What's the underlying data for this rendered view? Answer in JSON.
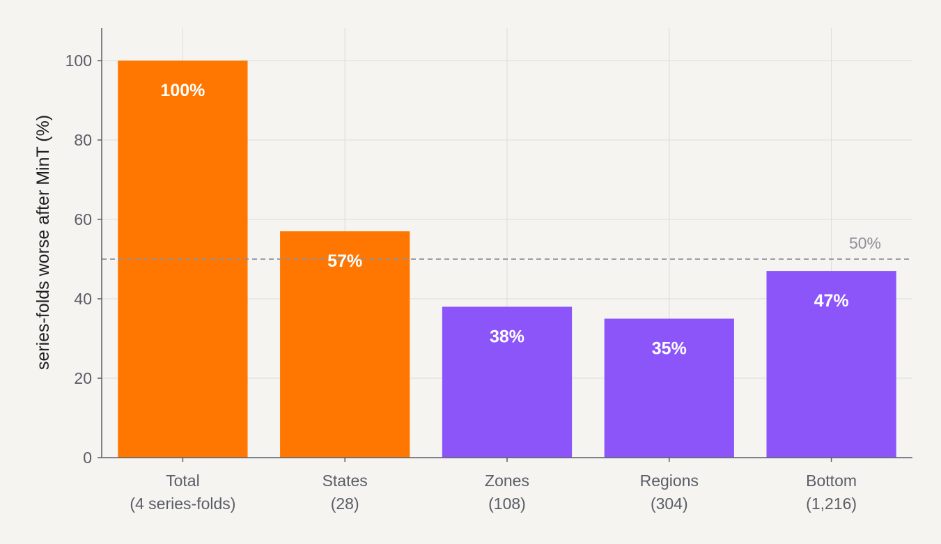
{
  "chart_data": {
    "type": "bar",
    "title": "",
    "xlabel": "",
    "ylabel": "series-folds worse after MinT (%)",
    "ylim": [
      0,
      108
    ],
    "yticks": [
      0,
      20,
      40,
      60,
      80,
      100
    ],
    "grid": true,
    "categories": [
      [
        "Total",
        "(4 series-folds)"
      ],
      [
        "States",
        "(28)"
      ],
      [
        "Zones",
        "(108)"
      ],
      [
        "Regions",
        "(304)"
      ],
      [
        "Bottom",
        "(1,216)"
      ]
    ],
    "values": [
      100,
      57,
      38,
      35,
      47
    ],
    "data_labels": [
      "100%",
      "57%",
      "38%",
      "35%",
      "47%"
    ],
    "bar_colors": [
      "#ff7700",
      "#ff7700",
      "#8b55fa",
      "#8b55fa",
      "#8b55fa"
    ],
    "reference_line": {
      "value": 50,
      "label": "50%",
      "style": "dashed",
      "color": "#8f9098"
    },
    "colors": {
      "background": "#f5f4f0",
      "grid": "#dcdbd7",
      "axis": "#5a5d66",
      "bar_label": "#ffffff"
    }
  }
}
